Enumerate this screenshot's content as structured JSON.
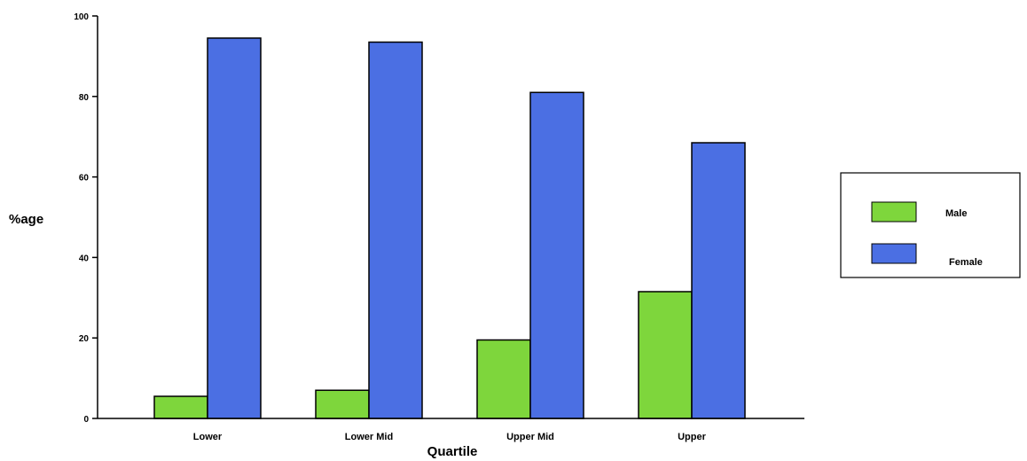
{
  "chart_data": {
    "type": "bar",
    "categories": [
      "Lower",
      "Lower Mid",
      "Upper Mid",
      "Upper"
    ],
    "series": [
      {
        "name": "Male",
        "color": "#7ed63c",
        "values": [
          5.5,
          7,
          19.5,
          31.5
        ]
      },
      {
        "name": "Female",
        "color": "#4b6fe3",
        "values": [
          94.5,
          93.5,
          81,
          68.5
        ]
      }
    ],
    "xlabel": "Quartile",
    "ylabel": "%age",
    "ylim": [
      0,
      100
    ],
    "yticks": [
      "0",
      "20",
      "40",
      "60",
      "80",
      "100"
    ],
    "grid": false,
    "legend_position": "right"
  }
}
